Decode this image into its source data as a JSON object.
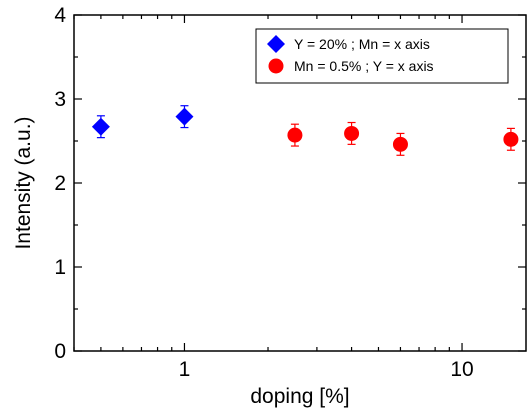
{
  "chart_data": {
    "type": "scatter",
    "title": "",
    "xlabel": "doping [%]",
    "ylabel": "Intensity (a.u.)",
    "xscale": "log",
    "xlim": [
      0.4,
      17
    ],
    "ylim": [
      0,
      4
    ],
    "xticks_major": [
      1,
      10
    ],
    "xtick_labels": [
      "1",
      "10"
    ],
    "yticks_major": [
      0,
      1,
      2,
      3,
      4
    ],
    "ytick_labels": [
      "0",
      "1",
      "2",
      "3",
      "4"
    ],
    "grid": false,
    "legend_position": "top-right",
    "series": [
      {
        "name": "Y = 20% ; Mn = x axis",
        "marker": "diamond",
        "color": "#0000ff",
        "points": [
          {
            "x": 0.5,
            "y": 2.67,
            "err": 0.13
          },
          {
            "x": 1.0,
            "y": 2.79,
            "err": 0.13
          }
        ]
      },
      {
        "name": "Mn = 0.5% ; Y = x axis",
        "marker": "circle",
        "color": "#ff0000",
        "points": [
          {
            "x": 2.5,
            "y": 2.57,
            "err": 0.13
          },
          {
            "x": 4.0,
            "y": 2.59,
            "err": 0.13
          },
          {
            "x": 6.0,
            "y": 2.46,
            "err": 0.13
          },
          {
            "x": 15.0,
            "y": 2.52,
            "err": 0.13
          }
        ]
      }
    ]
  }
}
